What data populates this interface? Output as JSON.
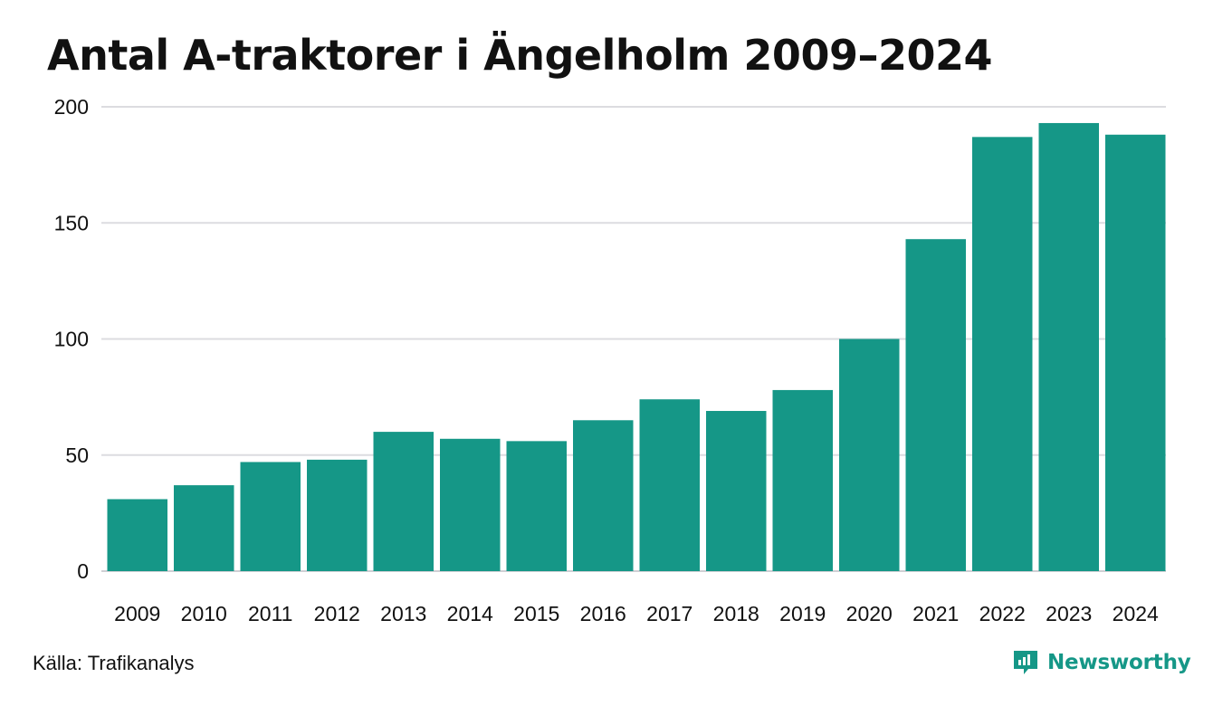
{
  "colors": {
    "bar": "#159787",
    "grid": "#dcdce0",
    "axis": "#cfcfd4",
    "text": "#111111",
    "brand": "#159787"
  },
  "footer": {
    "source": "Källa: Trafikanalys",
    "brand_name": "Newsworthy",
    "brand_icon": "newsworthy-logo-icon"
  },
  "chart_data": {
    "type": "bar",
    "title": "Antal A-traktorer i Ängelholm 2009–2024",
    "xlabel": "",
    "ylabel": "",
    "categories": [
      "2009",
      "2010",
      "2011",
      "2012",
      "2013",
      "2014",
      "2015",
      "2016",
      "2017",
      "2018",
      "2019",
      "2020",
      "2021",
      "2022",
      "2023",
      "2024"
    ],
    "values": [
      31,
      37,
      47,
      48,
      60,
      57,
      56,
      65,
      74,
      69,
      78,
      100,
      143,
      187,
      193,
      188
    ],
    "ylim": [
      0,
      200
    ],
    "yticks": [
      0,
      50,
      100,
      150,
      200
    ],
    "grid": true,
    "legend": "none"
  }
}
